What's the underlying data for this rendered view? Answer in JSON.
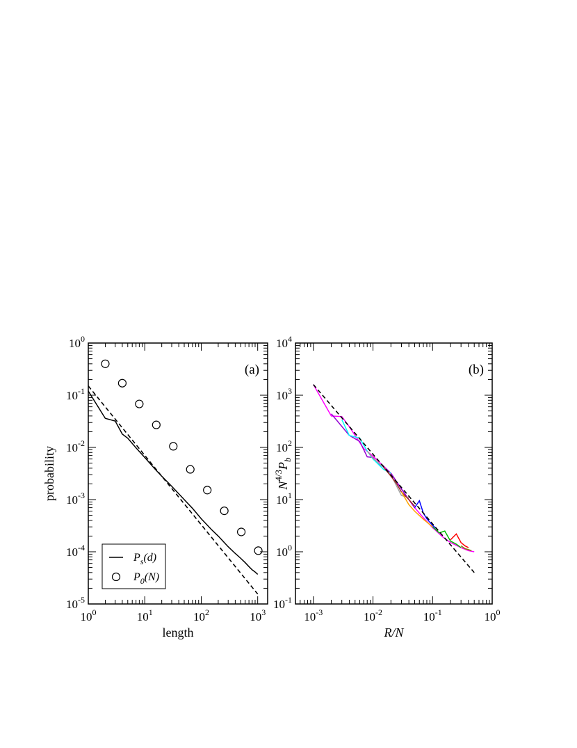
{
  "chart_data": [
    {
      "panel_label": "(a)",
      "type": "line",
      "xlabel": "length",
      "ylabel": "probability",
      "x_scale": "log",
      "y_scale": "log",
      "xlim": [
        1,
        1500
      ],
      "ylim": [
        1e-05,
        1
      ],
      "x_ticks": [
        1,
        10,
        100,
        1000
      ],
      "y_ticks": [
        1e-05,
        0.0001,
        0.001,
        0.01,
        0.1,
        1
      ],
      "x_tick_labels": [
        {
          "base": "10",
          "exp": "0"
        },
        {
          "base": "10",
          "exp": "1"
        },
        {
          "base": "10",
          "exp": "2"
        },
        {
          "base": "10",
          "exp": "3"
        }
      ],
      "y_tick_labels": [
        {
          "base": "10",
          "exp": "-5"
        },
        {
          "base": "10",
          "exp": "-4"
        },
        {
          "base": "10",
          "exp": "-3"
        },
        {
          "base": "10",
          "exp": "-2"
        },
        {
          "base": "10",
          "exp": "-1"
        },
        {
          "base": "10",
          "exp": "0"
        }
      ],
      "legend_position": "bottom-left",
      "legend": [
        {
          "main": "P",
          "sub": "s",
          "arg": "(d)",
          "marker": "line"
        },
        {
          "main": "P",
          "sub": "0",
          "arg": "(N)",
          "marker": "circle"
        }
      ],
      "series": [
        {
          "kind": "line",
          "color": "#000000",
          "x": [
            1,
            2,
            3,
            4,
            5,
            7,
            10,
            15,
            20,
            30,
            50,
            70,
            100,
            150,
            200,
            300,
            400,
            500,
            600,
            700,
            800,
            900,
            1000
          ],
          "y": [
            0.12,
            0.036,
            0.032,
            0.018,
            0.015,
            0.0098,
            0.0064,
            0.0039,
            0.0028,
            0.0018,
            0.001,
            0.00068,
            0.00043,
            0.00027,
            0.0002,
            0.000125,
            9.3e-05,
            7.5e-05,
            6.2e-05,
            5.2e-05,
            4.5e-05,
            4.1e-05,
            3.7e-05
          ]
        },
        {
          "kind": "scatter",
          "marker": "open-circle",
          "color": "#000000",
          "x": [
            2,
            4,
            8,
            16,
            32,
            64,
            128,
            256,
            512,
            1024
          ],
          "y": [
            0.4,
            0.17,
            0.068,
            0.027,
            0.0105,
            0.0038,
            0.00152,
            0.00061,
            0.00024,
            0.000105
          ]
        },
        {
          "kind": "dashed-line",
          "color": "#000000",
          "x": [
            1,
            1000
          ],
          "y": [
            0.15,
            1.55e-05
          ]
        }
      ]
    },
    {
      "panel_label": "(b)",
      "type": "line",
      "xlabel": "R/N",
      "ylabel": {
        "base": "N",
        "exp": "4/3",
        "tail": "P",
        "tail_sub": "b"
      },
      "x_scale": "log",
      "y_scale": "log",
      "xlim": [
        0.0005,
        1
      ],
      "ylim": [
        0.1,
        10000
      ],
      "x_ticks": [
        0.001,
        0.01,
        0.1,
        1
      ],
      "y_ticks": [
        0.1,
        1,
        10,
        100,
        1000,
        10000
      ],
      "x_tick_labels": [
        {
          "base": "10",
          "exp": "-3"
        },
        {
          "base": "10",
          "exp": "-2"
        },
        {
          "base": "10",
          "exp": "-1"
        },
        {
          "base": "10",
          "exp": "0"
        }
      ],
      "y_tick_labels": [
        {
          "base": "10",
          "exp": "-1"
        },
        {
          "base": "10",
          "exp": "0"
        },
        {
          "base": "10",
          "exp": "1"
        },
        {
          "base": "10",
          "exp": "2"
        },
        {
          "base": "10",
          "exp": "3"
        },
        {
          "base": "10",
          "exp": "4"
        }
      ],
      "series": [
        {
          "kind": "line",
          "color": "#ff00ff",
          "x": [
            0.001,
            0.002,
            0.003,
            0.004,
            0.005,
            0.007,
            0.01,
            0.015,
            0.02,
            0.03,
            0.05,
            0.07,
            0.1,
            0.15,
            0.2,
            0.3,
            0.4,
            0.5
          ],
          "y": [
            1600,
            400,
            390,
            250,
            170,
            95,
            68,
            44,
            32,
            16,
            7,
            4.5,
            2.9,
            1.9,
            1.5,
            1.2,
            1.05,
            1.0
          ]
        },
        {
          "kind": "line",
          "color": "#9400d3",
          "x": [
            0.002,
            0.004,
            0.006,
            0.008,
            0.01,
            0.012,
            0.016,
            0.02,
            0.03,
            0.04,
            0.05
          ],
          "y": [
            440,
            170,
            130,
            66,
            64,
            50,
            40,
            32,
            16,
            10,
            7
          ]
        },
        {
          "kind": "line",
          "color": "#00ffff",
          "x": [
            0.003,
            0.004,
            0.006,
            0.008,
            0.01,
            0.015,
            0.02
          ],
          "y": [
            340,
            170,
            150,
            85,
            60,
            38,
            32
          ]
        },
        {
          "kind": "line",
          "color": "#a0a0a0",
          "x": [
            0.008,
            0.01,
            0.015,
            0.02,
            0.025,
            0.03,
            0.04
          ],
          "y": [
            85,
            62,
            42,
            30,
            18,
            12,
            11
          ]
        },
        {
          "kind": "line",
          "color": "#a52a2a",
          "x": [
            0.015,
            0.02,
            0.025,
            0.03,
            0.04,
            0.05
          ],
          "y": [
            42,
            28,
            20,
            14,
            10,
            7.5
          ]
        },
        {
          "kind": "line",
          "color": "#ffa500",
          "x": [
            0.03,
            0.04,
            0.05,
            0.07,
            0.1
          ],
          "y": [
            14,
            8,
            6,
            4.2,
            3.0
          ]
        },
        {
          "kind": "line",
          "color": "#0000ff",
          "x": [
            0.05,
            0.06,
            0.07,
            0.08,
            0.1,
            0.12
          ],
          "y": [
            7,
            9.5,
            5.5,
            4.3,
            3.2,
            2.7
          ]
        },
        {
          "kind": "line",
          "color": "#00bb00",
          "x": [
            0.1,
            0.13,
            0.16,
            0.2,
            0.25,
            0.3
          ],
          "y": [
            3.0,
            2.3,
            2.5,
            1.6,
            1.4,
            1.2
          ]
        },
        {
          "kind": "line",
          "color": "#ff0000",
          "x": [
            0.2,
            0.25,
            0.3,
            0.35,
            0.4
          ],
          "y": [
            1.7,
            2.2,
            1.5,
            1.3,
            1.2
          ]
        },
        {
          "kind": "line",
          "color": "#808000",
          "x": [
            0.3,
            0.35,
            0.4,
            0.45
          ],
          "y": [
            1.3,
            1.15,
            1.1,
            1.05
          ]
        },
        {
          "kind": "dashed-line",
          "color": "#000000",
          "x": [
            0.001,
            0.5
          ],
          "y": [
            1600,
            0.4
          ]
        }
      ]
    }
  ]
}
